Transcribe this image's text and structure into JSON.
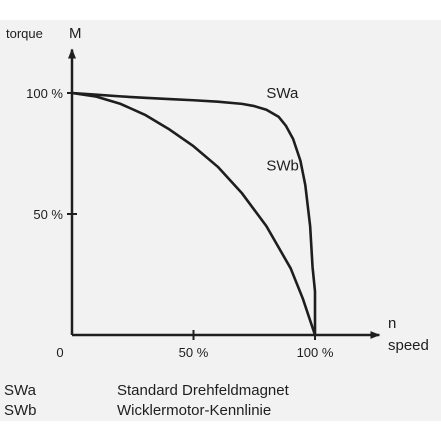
{
  "chart_data": {
    "type": "line",
    "ylabel_word": "torque",
    "ylabel_symbol": "M",
    "xlabel_symbol": "n",
    "xlabel_word": "speed",
    "origin_label": "0",
    "x_ticks": [
      {
        "value": 50,
        "label": "50 %"
      },
      {
        "value": 100,
        "label": "100 %"
      }
    ],
    "y_ticks": [
      {
        "value": 50,
        "label": "50 %"
      },
      {
        "value": 100,
        "label": "100 %"
      }
    ],
    "xlim": [
      0,
      110
    ],
    "ylim": [
      0,
      118
    ],
    "series": [
      {
        "name": "SWa",
        "x": [
          0,
          10,
          20,
          30,
          40,
          50,
          60,
          70,
          75,
          80,
          85,
          88,
          91,
          94,
          96,
          98,
          99,
          100,
          100,
          100
        ],
        "y": [
          100,
          99.3,
          98.6,
          98.0,
          97.5,
          97.0,
          96.4,
          95.5,
          94.6,
          93.1,
          90.2,
          86.5,
          81.0,
          72.0,
          62.0,
          45.0,
          28.0,
          18.0,
          8.0,
          0
        ]
      },
      {
        "name": "SWb",
        "x": [
          0,
          10,
          20,
          30,
          40,
          50,
          60,
          70,
          80,
          90,
          95,
          100
        ],
        "y": [
          100,
          98.5,
          95.5,
          91.0,
          85.0,
          78.0,
          69.5,
          58.5,
          45.0,
          27.5,
          15.0,
          0
        ]
      }
    ],
    "series_labels": [
      {
        "text": "SWa",
        "at": [
          80,
          98
        ]
      },
      {
        "text": "SWb",
        "at": [
          80,
          68
        ]
      }
    ]
  },
  "legend": [
    {
      "key": "SWa",
      "description": "Standard Drehfeldmagnet"
    },
    {
      "key": "SWb",
      "description": "Wicklermotor-Kennlinie"
    }
  ]
}
